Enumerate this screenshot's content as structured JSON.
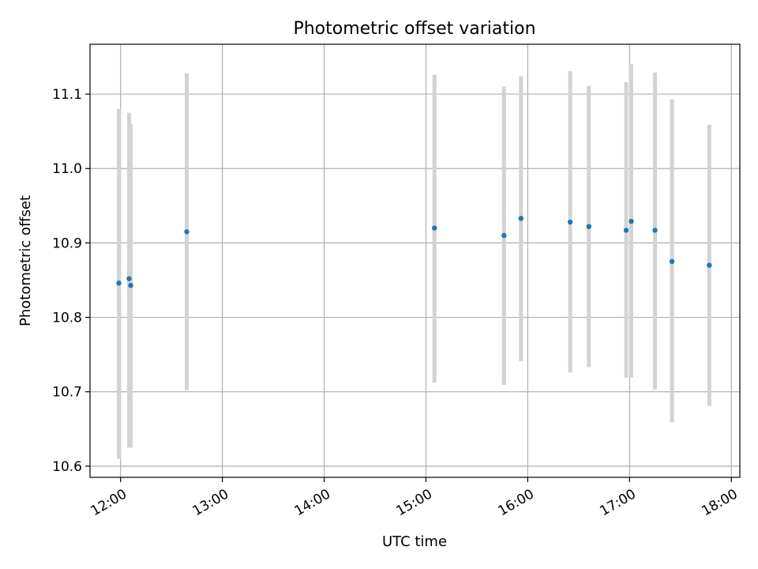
{
  "chart_data": {
    "type": "scatter",
    "title": "Photometric offset variation",
    "xlabel": "UTC time",
    "ylabel": "Photometric offset",
    "x_ticks": [
      "12:00",
      "13:00",
      "14:00",
      "15:00",
      "16:00",
      "17:00",
      "18:00"
    ],
    "y_ticks": [
      "10.6",
      "10.7",
      "10.8",
      "10.9",
      "11.0",
      "11.1"
    ],
    "xlim": [
      "11:42",
      "18:05"
    ],
    "ylim": [
      10.585,
      11.167
    ],
    "grid": true,
    "marker_color": "#1f77b4",
    "errorbar_color": "#d3d3d3",
    "points": [
      {
        "x": "11:59",
        "y": 10.846,
        "ylo": 10.61,
        "yhi": 11.08
      },
      {
        "x": "12:05",
        "y": 10.852,
        "ylo": 10.625,
        "yhi": 11.075
      },
      {
        "x": "12:06",
        "y": 10.843,
        "ylo": 10.625,
        "yhi": 11.06
      },
      {
        "x": "12:39",
        "y": 10.915,
        "ylo": 10.702,
        "yhi": 11.128
      },
      {
        "x": "15:05",
        "y": 10.92,
        "ylo": 10.712,
        "yhi": 11.126
      },
      {
        "x": "15:46",
        "y": 10.91,
        "ylo": 10.709,
        "yhi": 11.11
      },
      {
        "x": "15:56",
        "y": 10.933,
        "ylo": 10.741,
        "yhi": 11.124
      },
      {
        "x": "16:25",
        "y": 10.928,
        "ylo": 10.726,
        "yhi": 11.131
      },
      {
        "x": "16:36",
        "y": 10.922,
        "ylo": 10.733,
        "yhi": 11.111
      },
      {
        "x": "16:58",
        "y": 10.917,
        "ylo": 10.719,
        "yhi": 11.116
      },
      {
        "x": "17:01",
        "y": 10.929,
        "ylo": 10.719,
        "yhi": 11.14
      },
      {
        "x": "17:15",
        "y": 10.917,
        "ylo": 10.703,
        "yhi": 11.129
      },
      {
        "x": "17:25",
        "y": 10.875,
        "ylo": 10.659,
        "yhi": 11.093
      },
      {
        "x": "17:47",
        "y": 10.87,
        "ylo": 10.681,
        "yhi": 11.059
      }
    ]
  }
}
